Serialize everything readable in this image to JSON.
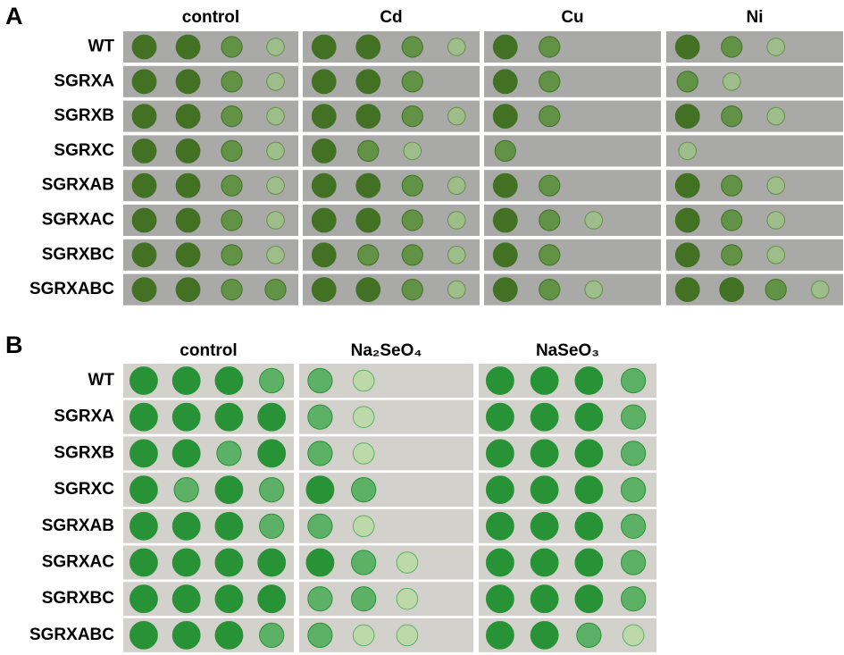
{
  "panels": [
    {
      "label": "A",
      "columns": [
        "control",
        "Cd",
        "Cu",
        "Ni"
      ],
      "rows": [
        "WT",
        "SGRXA",
        "SGRXB",
        "SGRXC",
        "SGRXAB",
        "SGRXAC",
        "SGRXBC",
        "SGRXABC"
      ]
    },
    {
      "label": "B",
      "columns": [
        "control",
        "Na₂SeO₄",
        "NaSeO₃"
      ],
      "rows": [
        "WT",
        "SGRXA",
        "SGRXB",
        "SGRXC",
        "SGRXAB",
        "SGRXAC",
        "SGRXBC",
        "SGRXABC"
      ]
    }
  ]
}
